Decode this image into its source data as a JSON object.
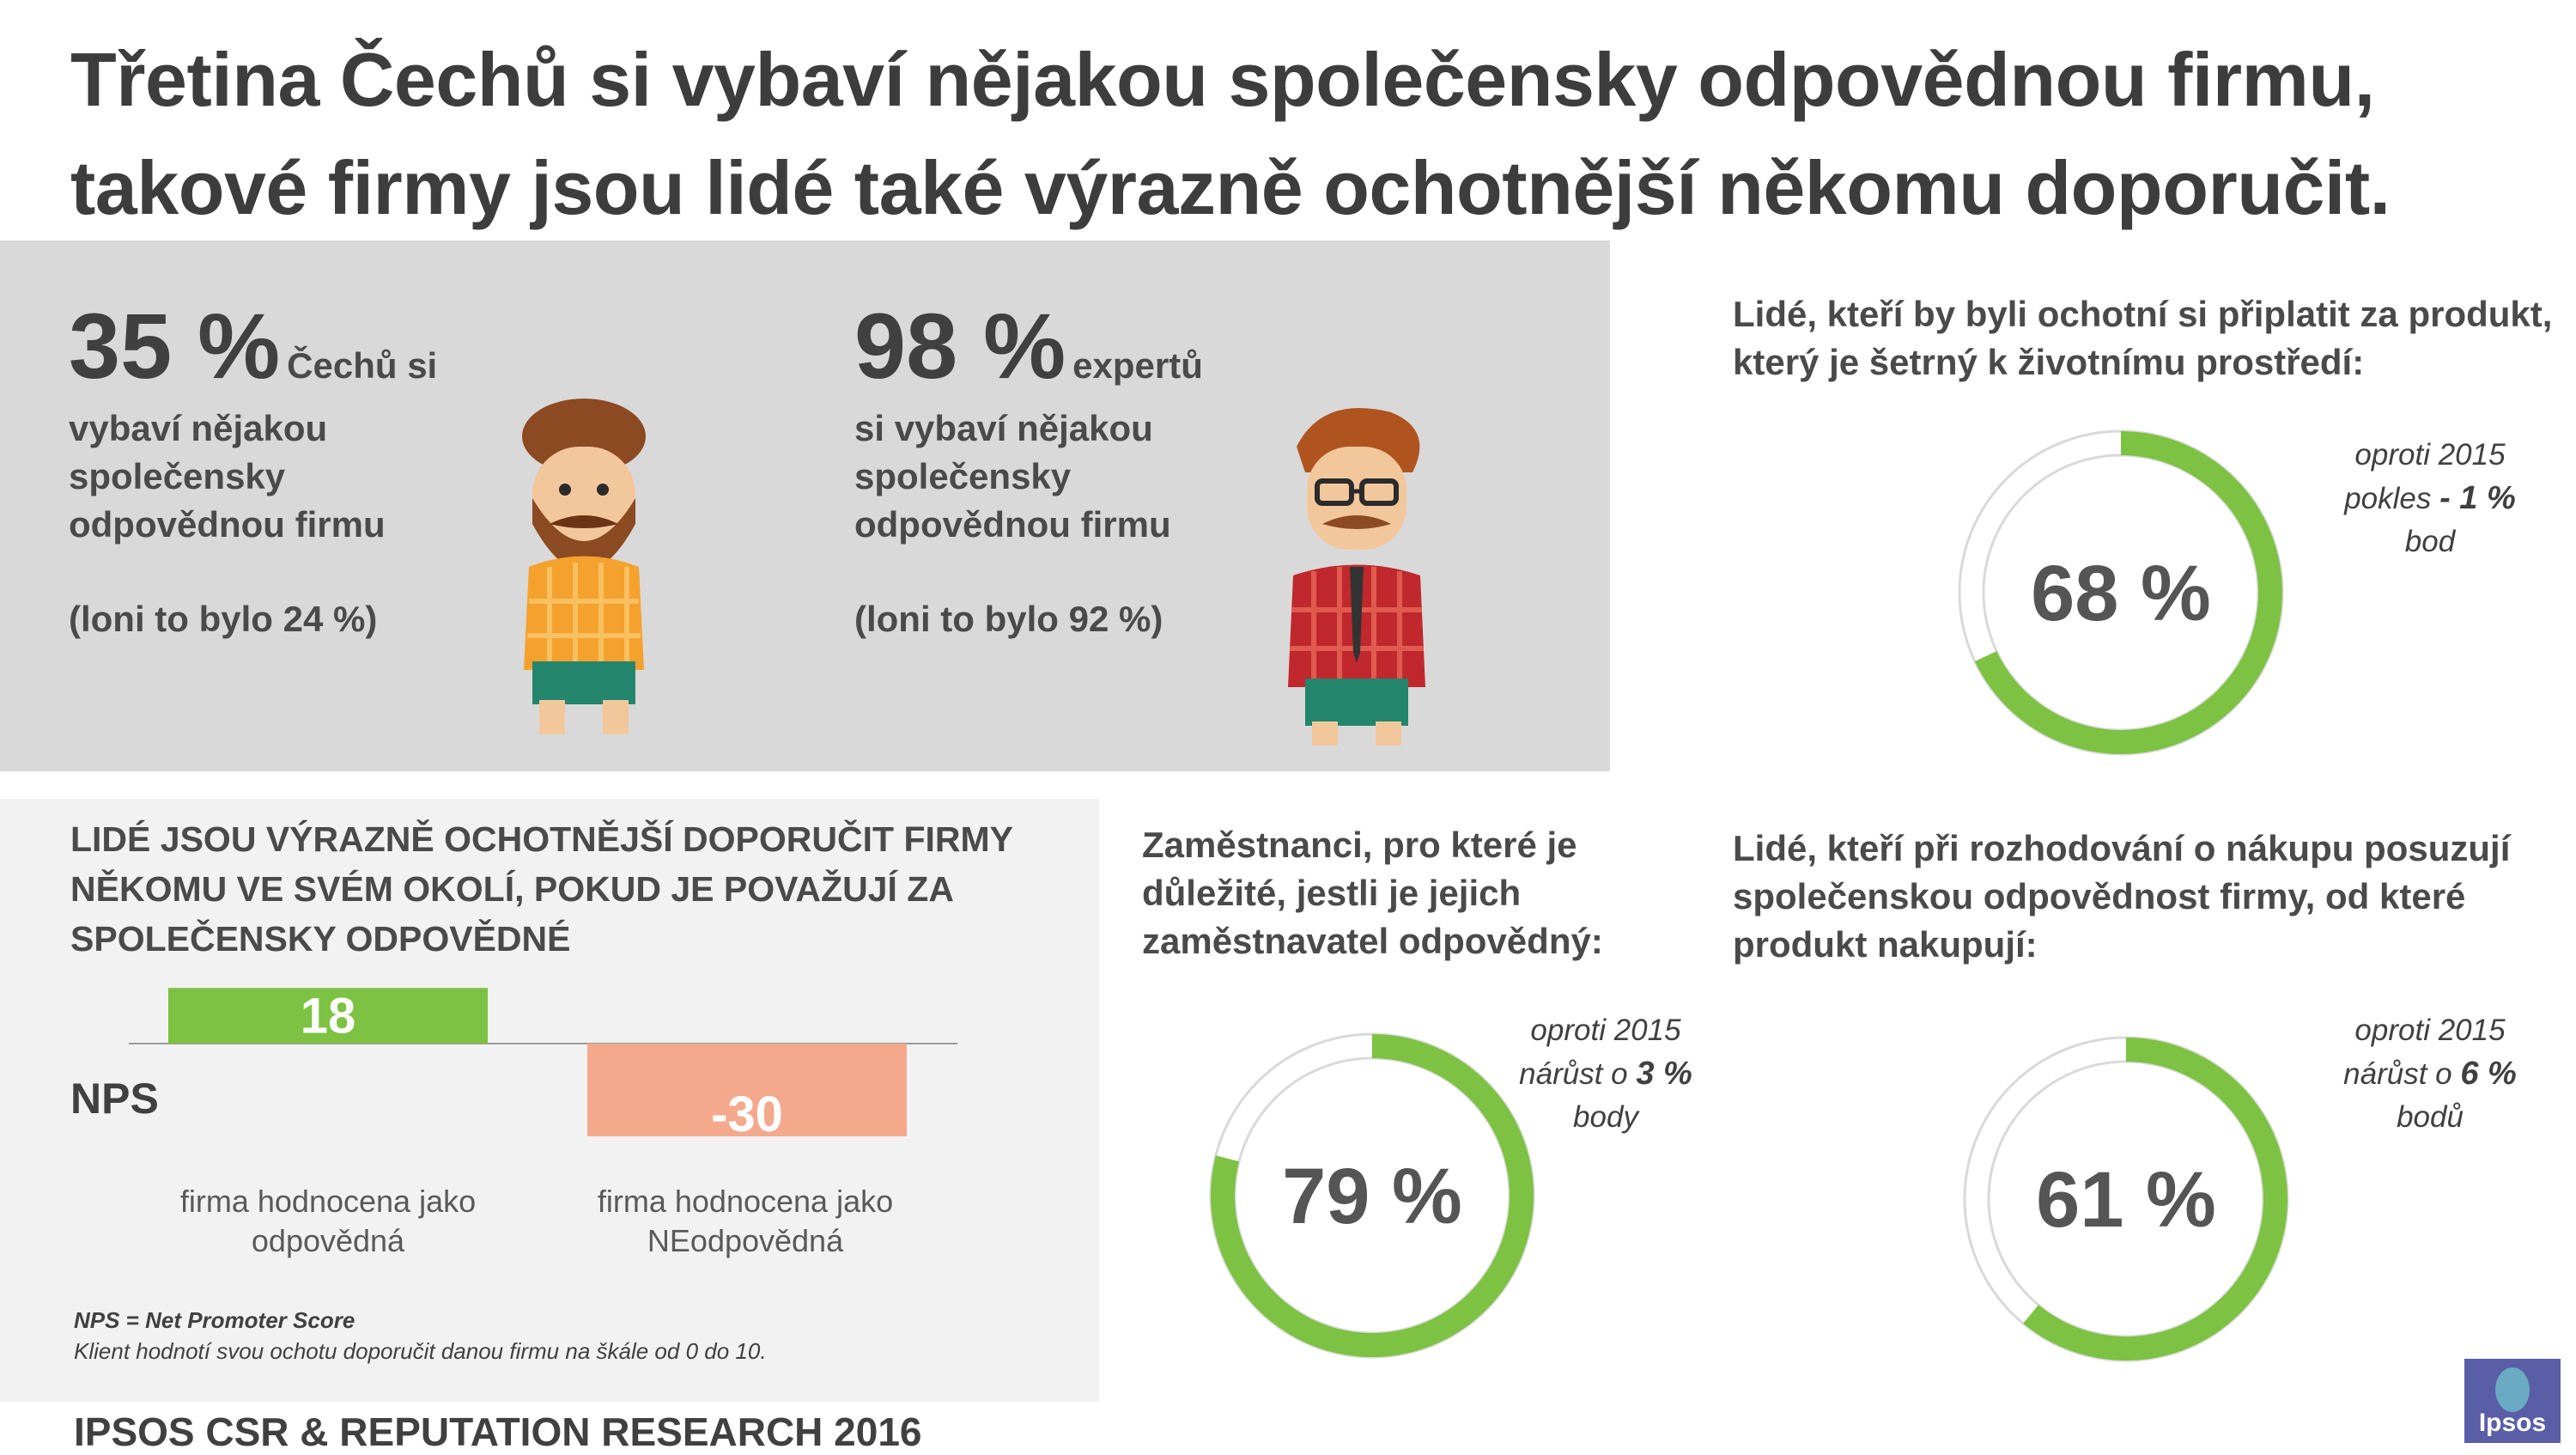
{
  "title": {
    "line1": "Třetina Čechů si vybaví nějakou společensky odpovědnou firmu,",
    "line2": "takové firmy jsou lidé také výrazně ochotnější někomu doporučit."
  },
  "stats": [
    {
      "value": "35 %",
      "suffix": "Čechů si",
      "desc": [
        "vybaví nějakou",
        "společensky",
        "odpovědnou firmu"
      ],
      "prev": "(loni to bylo 24 %)"
    },
    {
      "value": "98 %",
      "suffix": "expertů",
      "desc": [
        "si vybaví nějakou",
        "společensky",
        "odpovědnou firmu"
      ],
      "prev": "(loni to bylo 92 %)"
    }
  ],
  "nps": {
    "heading": [
      "LIDÉ JSOU VÝRAZNĚ OCHOTNĚJŠÍ DOPORUČIT FIRMY",
      "NĚKOMU VE SVÉM OKOLÍ, POKUD JE POVAŽUJÍ ZA",
      "SPOLEČENSKY ODPOVĚDNÉ"
    ],
    "axis_label": "NPS",
    "categories": [
      [
        "firma hodnocena jako",
        "odpovědná"
      ],
      [
        "firma hodnocena jako",
        "NEodpovědná"
      ]
    ],
    "definition": "NPS = Net Promoter Score",
    "definition_note": "Klient hodnotí svou ochotu doporučit danou firmu na škále od 0 do 10.",
    "colors": {
      "positive": "#7dc242",
      "negative": "#f4a98c"
    }
  },
  "donuts": [
    {
      "question": [
        "Lidé, kteří by byli ochotní si připlatit za produkt,",
        "který je šetrný k životnímu prostředí:"
      ],
      "label": "68 %",
      "delta_lines": [
        "oproti 2015",
        "pokles",
        "- 1 %",
        "bod"
      ]
    },
    {
      "question": [
        "Zaměstnanci, pro které je",
        "důležité, jestli je jejich",
        "zaměstnavatel odpovědný:"
      ],
      "label": "79 %",
      "delta_lines": [
        "oproti 2015",
        "nárůst o",
        "3 %",
        "body"
      ]
    },
    {
      "question": [
        "Lidé, kteří při rozhodování o nákupu posuzují",
        "společenskou odpovědnost firmy, od které",
        "produkt nakupují:"
      ],
      "label": "61 %",
      "delta_lines": [
        "oproti 2015",
        "nárůst o",
        "6 %",
        "bodů"
      ]
    }
  ],
  "donut_colors": {
    "fill": "#7dc242",
    "track": "#d9d9d9"
  },
  "footer": "IPSOS CSR & REPUTATION RESEARCH 2016",
  "logo": "Ipsos",
  "chart_data": [
    {
      "type": "bar",
      "categories": [
        "firma hodnocena jako odpovědná",
        "firma hodnocena jako NEodpovědná"
      ],
      "values": [
        18,
        -30
      ],
      "ylabel": "NPS"
    },
    {
      "type": "pie",
      "title": "Lidé, kteří by byli ochotní si připlatit za produkt, který je šetrný k životnímu prostředí:",
      "values": [
        68,
        32
      ]
    },
    {
      "type": "pie",
      "title": "Zaměstnanci, pro které je důležité, jestli je jejich zaměstnavatel odpovědný:",
      "values": [
        79,
        21
      ]
    },
    {
      "type": "pie",
      "title": "Lidé, kteří při rozhodování o nákupu posuzují společenskou odpovědnost firmy, od které produkt nakupují:",
      "values": [
        61,
        39
      ]
    }
  ]
}
